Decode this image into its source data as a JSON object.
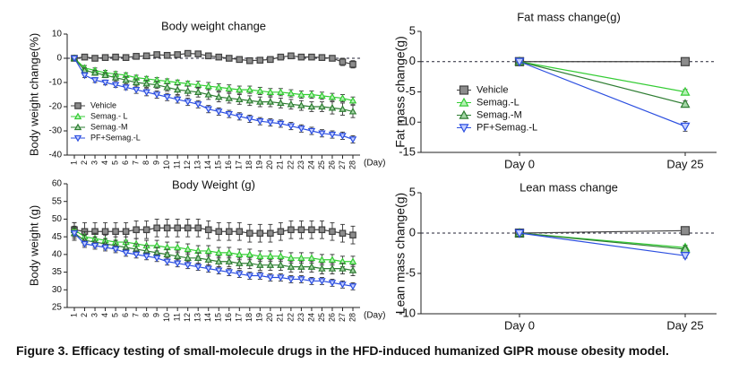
{
  "chart_data": [
    {
      "type": "line",
      "title": "Body weight change",
      "y_label": "Body weight change(%)",
      "x_label": "(Day)",
      "categories": [
        "1",
        "2",
        "3",
        "4",
        "5",
        "6",
        "7",
        "8",
        "9",
        "10",
        "11",
        "12",
        "13",
        "14",
        "15",
        "16",
        "17",
        "18",
        "19",
        "20",
        "21",
        "22",
        "23",
        "24",
        "25",
        "26",
        "27",
        "28"
      ],
      "ylim": [
        -40,
        10
      ],
      "yticks": [
        -40,
        -30,
        -20,
        -10,
        0,
        10
      ],
      "legend": "lower left",
      "series": [
        {
          "name": "Vehicle",
          "color": "#404040",
          "fill": "#8c8c8c",
          "marker": "square",
          "values": [
            0,
            0.5,
            0,
            0.3,
            0.5,
            0.3,
            0.8,
            1,
            1.5,
            1.2,
            1.5,
            2,
            1.8,
            1,
            0.5,
            0,
            -0.5,
            -1,
            -0.8,
            -0.5,
            0.5,
            1,
            0.5,
            0.5,
            0.3,
            0,
            -1.5,
            -2.5
          ],
          "errors": [
            0.5,
            1,
            1,
            1,
            1,
            1,
            1,
            1,
            1,
            1,
            1,
            1,
            1,
            1,
            1,
            1,
            1,
            1,
            1,
            1,
            1,
            1,
            1,
            1,
            1,
            1,
            1.5,
            1.5
          ]
        },
        {
          "name": "Semag.- L",
          "color": "#33cc33",
          "fill": "#b8f0b8",
          "marker": "triangle-up",
          "values": [
            0,
            -4,
            -5,
            -6,
            -6.5,
            -7,
            -8,
            -8.5,
            -9,
            -9.5,
            -10,
            -10.5,
            -11,
            -11.5,
            -12,
            -12.5,
            -13,
            -13,
            -13.5,
            -14,
            -14,
            -14.5,
            -15,
            -15,
            -15.5,
            -16,
            -16.5,
            -17.5
          ],
          "errors": [
            0.5,
            1,
            1,
            1,
            1,
            1,
            1,
            1,
            1,
            1,
            1,
            1,
            1.5,
            1.5,
            1.5,
            1.5,
            1.5,
            1.5,
            1.5,
            1.5,
            1.5,
            1.5,
            1.5,
            1.5,
            1.5,
            1.5,
            1.5,
            1.5
          ]
        },
        {
          "name": "Semag.-M",
          "color": "#2e7d32",
          "fill": "#a5d6a7",
          "marker": "triangle-up",
          "values": [
            0,
            -5,
            -6,
            -7,
            -8,
            -9,
            -10,
            -10.5,
            -11,
            -12,
            -13,
            -13.5,
            -14,
            -15,
            -16,
            -16.5,
            -17,
            -17.5,
            -18,
            -18,
            -18.5,
            -19,
            -19.5,
            -20,
            -20,
            -20.5,
            -21,
            -22
          ],
          "errors": [
            0.5,
            1,
            1,
            1,
            1.5,
            1.5,
            1.5,
            1.5,
            1.5,
            1.5,
            2,
            2,
            2,
            2,
            2,
            2,
            2,
            2,
            2,
            2,
            2,
            2,
            2,
            2,
            2,
            2.5,
            2.5,
            2.5
          ]
        },
        {
          "name": "PF+Semag.-L",
          "color": "#2c4fe0",
          "fill": "#c5d0ff",
          "marker": "triangle-down",
          "values": [
            0,
            -7,
            -9,
            -10,
            -11,
            -12,
            -13,
            -14,
            -15,
            -16,
            -17,
            -18,
            -19,
            -21,
            -22,
            -23,
            -24,
            -25,
            -26,
            -26.5,
            -27,
            -28,
            -29,
            -30,
            -31,
            -31.5,
            -32,
            -33.5
          ],
          "errors": [
            0.5,
            1,
            1,
            1,
            1,
            1,
            1.5,
            1.5,
            1.5,
            1.5,
            1.5,
            1.5,
            1.5,
            1.5,
            1.5,
            1.5,
            1.5,
            1.5,
            1.5,
            1.5,
            1.5,
            1.5,
            1.5,
            1.5,
            1.5,
            1.5,
            1.5,
            1.5
          ]
        }
      ]
    },
    {
      "type": "line",
      "title": "Body Weight (g)",
      "y_label": "Body weight (g)",
      "x_label": "(Day)",
      "categories": [
        "1",
        "2",
        "3",
        "4",
        "5",
        "6",
        "7",
        "8",
        "9",
        "10",
        "11",
        "12",
        "13",
        "14",
        "15",
        "16",
        "17",
        "18",
        "19",
        "20",
        "21",
        "22",
        "23",
        "24",
        "25",
        "26",
        "27",
        "28"
      ],
      "ylim": [
        25,
        60
      ],
      "yticks": [
        25,
        30,
        35,
        40,
        45,
        50,
        55,
        60
      ],
      "series": [
        {
          "color": "#404040",
          "fill": "#8c8c8c",
          "marker": "square",
          "values": [
            47,
            46.5,
            46.5,
            46.5,
            46.5,
            46.5,
            47,
            47,
            47.5,
            47.5,
            47.5,
            47.5,
            47.5,
            47,
            46.5,
            46.5,
            46.5,
            46,
            46,
            46,
            46.5,
            47,
            47,
            47,
            47,
            46.5,
            46,
            45.5
          ],
          "errors": [
            2,
            2.5,
            2.5,
            2.5,
            2.5,
            2.5,
            2.5,
            2.5,
            2.5,
            2.5,
            2.5,
            2.5,
            2.5,
            2.5,
            2.5,
            2.5,
            2.5,
            2.5,
            2.5,
            2.5,
            2.5,
            2.5,
            2.5,
            2.5,
            2.5,
            2.5,
            2.5,
            2.5
          ]
        },
        {
          "color": "#33cc33",
          "fill": "#b8f0b8",
          "marker": "triangle-up",
          "values": [
            47,
            45,
            44.5,
            44,
            43.5,
            43.5,
            43,
            42.5,
            42.5,
            42,
            42,
            41.5,
            41,
            41,
            40.5,
            40.5,
            40,
            40,
            39.5,
            39.5,
            39.5,
            39,
            39,
            39,
            38.5,
            38.5,
            38,
            38
          ],
          "errors": [
            2,
            1.5,
            1.5,
            1.5,
            1.5,
            1.5,
            1.5,
            1.5,
            1.5,
            1.5,
            1.5,
            1.5,
            1.5,
            1.5,
            1.5,
            1.5,
            1.5,
            1.5,
            1.5,
            1.5,
            1.5,
            1.5,
            1.5,
            1.5,
            1.5,
            1.5,
            1.5,
            1.5
          ]
        },
        {
          "color": "#2e7d32",
          "fill": "#a5d6a7",
          "marker": "triangle-up",
          "values": [
            46,
            44,
            43.5,
            43,
            42.5,
            42,
            41.5,
            41,
            40.5,
            40,
            39.5,
            39,
            39,
            38.5,
            38,
            38,
            37.5,
            37.5,
            37,
            37,
            37,
            36.5,
            36.5,
            36.5,
            36,
            36,
            36,
            35.5
          ],
          "errors": [
            2,
            1.5,
            1.5,
            1.5,
            1.5,
            1.5,
            1.5,
            1.5,
            1.5,
            1.5,
            1.5,
            1.5,
            1.5,
            1.5,
            1.5,
            1.5,
            1.5,
            1.5,
            1.5,
            1.5,
            1.5,
            1.5,
            1.5,
            1.5,
            1.5,
            1.5,
            1.5,
            1.5
          ]
        },
        {
          "color": "#2c4fe0",
          "fill": "#c5d0ff",
          "marker": "triangle-down",
          "values": [
            46,
            43,
            42.5,
            42,
            41.5,
            40.5,
            40,
            39.5,
            39,
            38,
            37.5,
            37,
            36.5,
            36,
            35.5,
            35,
            34.5,
            34,
            34,
            33.5,
            33.5,
            33,
            33,
            32.5,
            32.5,
            32,
            31.5,
            31
          ],
          "errors": [
            1.5,
            1,
            1,
            1,
            1,
            1,
            1,
            1,
            1,
            1,
            1,
            1,
            1,
            1,
            1,
            1,
            1,
            1,
            1,
            1,
            1,
            1,
            1,
            1,
            1,
            1,
            1,
            1
          ]
        }
      ]
    },
    {
      "type": "line",
      "title": "Fat mass change(g)",
      "y_label": "Fat mass change(g)",
      "categories": [
        "Day 0",
        "Day 25"
      ],
      "ylim": [
        -15,
        5
      ],
      "yticks": [
        -15,
        -10,
        -5,
        0,
        5
      ],
      "legend": "center left",
      "series": [
        {
          "name": "Vehicle",
          "color": "#404040",
          "fill": "#8c8c8c",
          "marker": "square",
          "values": [
            0,
            0
          ],
          "errors": [
            0.3,
            0.3
          ]
        },
        {
          "name": "Semag.-L",
          "color": "#33cc33",
          "fill": "#b8f0b8",
          "marker": "triangle-up",
          "values": [
            0,
            -5
          ],
          "errors": [
            0.3,
            0.4
          ]
        },
        {
          "name": "Semag.-M",
          "color": "#2e7d32",
          "fill": "#a5d6a7",
          "marker": "triangle-up",
          "values": [
            0,
            -7
          ],
          "errors": [
            0.3,
            0.5
          ]
        },
        {
          "name": "PF+Semag.-L",
          "color": "#2c4fe0",
          "fill": "#c5d0ff",
          "marker": "triangle-down",
          "values": [
            0,
            -10.7
          ],
          "errors": [
            0.3,
            0.8
          ]
        }
      ]
    },
    {
      "type": "line",
      "title": "Lean mass change",
      "y_label": "Lean mass change(g)",
      "categories": [
        "Day 0",
        "Day 25"
      ],
      "ylim": [
        -10,
        5
      ],
      "yticks": [
        -10,
        -5,
        0,
        5
      ],
      "series": [
        {
          "color": "#404040",
          "fill": "#8c8c8c",
          "marker": "square",
          "values": [
            0,
            0.3
          ],
          "errors": [
            0.2,
            0.2
          ]
        },
        {
          "color": "#33cc33",
          "fill": "#b8f0b8",
          "marker": "triangle-up",
          "values": [
            0,
            -1.8
          ],
          "errors": [
            0.2,
            0.3
          ]
        },
        {
          "color": "#2e7d32",
          "fill": "#a5d6a7",
          "marker": "triangle-up",
          "values": [
            0,
            -2
          ],
          "errors": [
            0.2,
            0.3
          ]
        },
        {
          "color": "#2c4fe0",
          "fill": "#c5d0ff",
          "marker": "triangle-down",
          "values": [
            0,
            -2.8
          ],
          "errors": [
            0.2,
            0.3
          ]
        }
      ]
    }
  ],
  "caption": "Figure 3. Efficacy testing of small-molecule drugs in the HFD-induced humanized GIPR mouse obesity model."
}
